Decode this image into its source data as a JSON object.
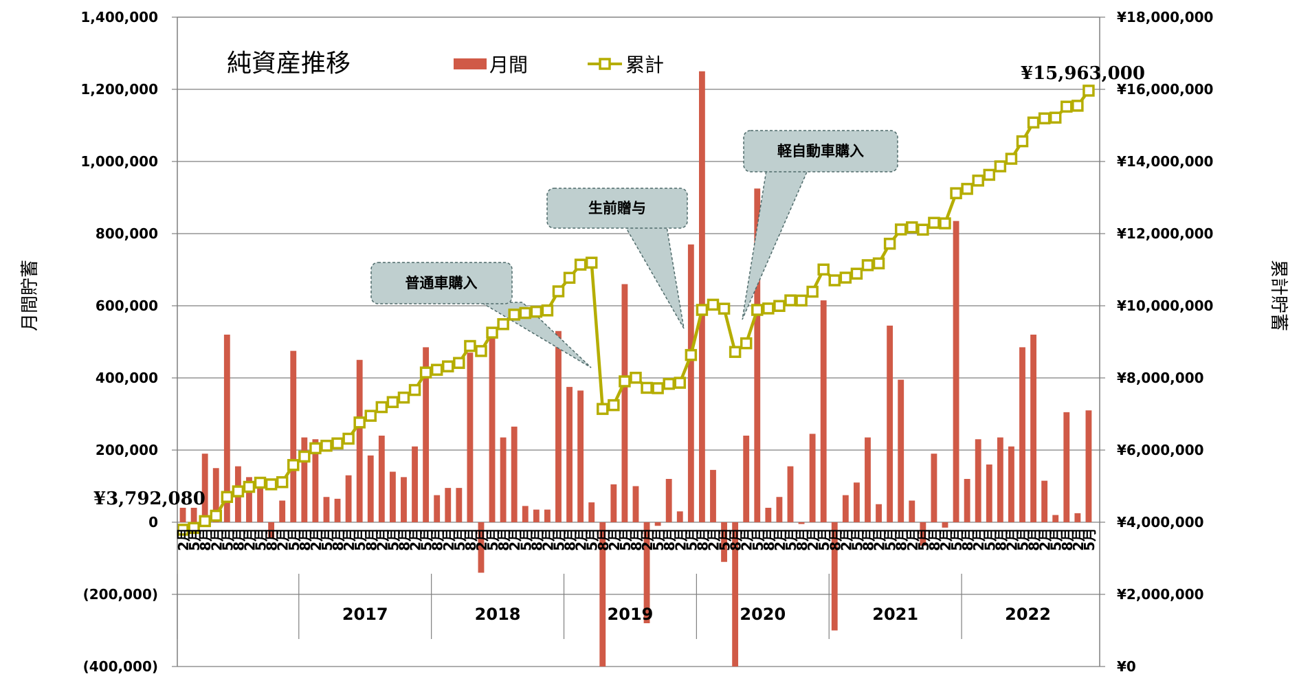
{
  "chart_data": {
    "type": "bar+line",
    "title": "純資産推移",
    "legend": [
      {
        "name": "月間",
        "color": "#d05a47",
        "marker": "bar"
      },
      {
        "name": "累計",
        "color": "#b5ad00",
        "marker": "line-square"
      }
    ],
    "y_left": {
      "label": "月間貯蓄",
      "ylim": [
        -400000,
        1400000
      ],
      "ticks": [
        -400000,
        -200000,
        0,
        200000,
        400000,
        600000,
        800000,
        1000000,
        1200000,
        1400000
      ],
      "tick_labels": [
        "(400,000)",
        "(200,000)",
        "0",
        "200,000",
        "400,000",
        "600,000",
        "800,000",
        "1,000,000",
        "1,200,000",
        "1,400,000"
      ]
    },
    "y_right": {
      "label": "累計貯蓄",
      "ylim": [
        0,
        18000000
      ],
      "ticks": [
        0,
        2000000,
        4000000,
        6000000,
        8000000,
        10000000,
        12000000,
        14000000,
        16000000,
        18000000
      ],
      "tick_labels": [
        "¥0",
        "¥2,000,000",
        "¥4,000,000",
        "¥6,000,000",
        "¥8,000,000",
        "¥10,000,000",
        "¥12,000,000",
        "¥14,000,000",
        "¥16,000,000",
        "¥18,000,000"
      ]
    },
    "month_labels": [
      "2月",
      "5月",
      "8月",
      "11月"
    ],
    "year_labels": [
      "2017",
      "2018",
      "2019",
      "2020",
      "2021",
      "2022"
    ],
    "annotations": {
      "start_value": "¥3,792,080",
      "end_value": "¥15,963,000"
    },
    "callouts": [
      "普通車購入",
      "生前贈与",
      "軽自動車購入"
    ],
    "series": [
      {
        "name": "月間",
        "values": [
          40000,
          40000,
          190000,
          150000,
          520000,
          155000,
          125000,
          115000,
          -45000,
          60000,
          475000,
          235000,
          230000,
          70000,
          65000,
          130000,
          450000,
          185000,
          240000,
          140000,
          125000,
          210000,
          485000,
          75000,
          95000,
          95000,
          470000,
          -140000,
          510000,
          235000,
          265000,
          45000,
          35000,
          35000,
          530000,
          375000,
          365000,
          55000,
          -400000,
          105000,
          660000,
          100000,
          -280000,
          -10000,
          120000,
          30000,
          770000,
          1250000,
          145000,
          -110000,
          -400000,
          240000,
          925000,
          40000,
          70000,
          155000,
          -5000,
          245000,
          615000,
          -300000,
          75000,
          110000,
          235000,
          50000,
          545000,
          395000,
          60000,
          -65000,
          190000,
          -15000,
          835000,
          120000,
          230000,
          160000,
          235000,
          210000,
          485000,
          520000,
          115000,
          20000,
          305000,
          25000,
          310000
        ]
      },
      {
        "name": "累計",
        "values": [
          3792080,
          3840000,
          4030000,
          4180000,
          4700000,
          4855000,
          4980000,
          5095000,
          5050000,
          5110000,
          5585000,
          5820000,
          6050000,
          6120000,
          6185000,
          6315000,
          6765000,
          6950000,
          7190000,
          7330000,
          7455000,
          7665000,
          8150000,
          8225000,
          8320000,
          8415000,
          8885000,
          8745000,
          9255000,
          9490000,
          9755000,
          9800000,
          9835000,
          9870000,
          10400000,
          10775000,
          11140000,
          11195000,
          7140000,
          7245000,
          7905000,
          8005000,
          7725000,
          7715000,
          7835000,
          7865000,
          8635000,
          9885000,
          10030000,
          9920000,
          8720000,
          8960000,
          9885000,
          9925000,
          9995000,
          10150000,
          10145000,
          10390000,
          11005000,
          10705000,
          10780000,
          10890000,
          11125000,
          11175000,
          11720000,
          12115000,
          12175000,
          12110000,
          12300000,
          12285000,
          13120000,
          13240000,
          13470000,
          13630000,
          13865000,
          14075000,
          14560000,
          15080000,
          15195000,
          15215000,
          15520000,
          15545000,
          15963000
        ]
      }
    ]
  }
}
